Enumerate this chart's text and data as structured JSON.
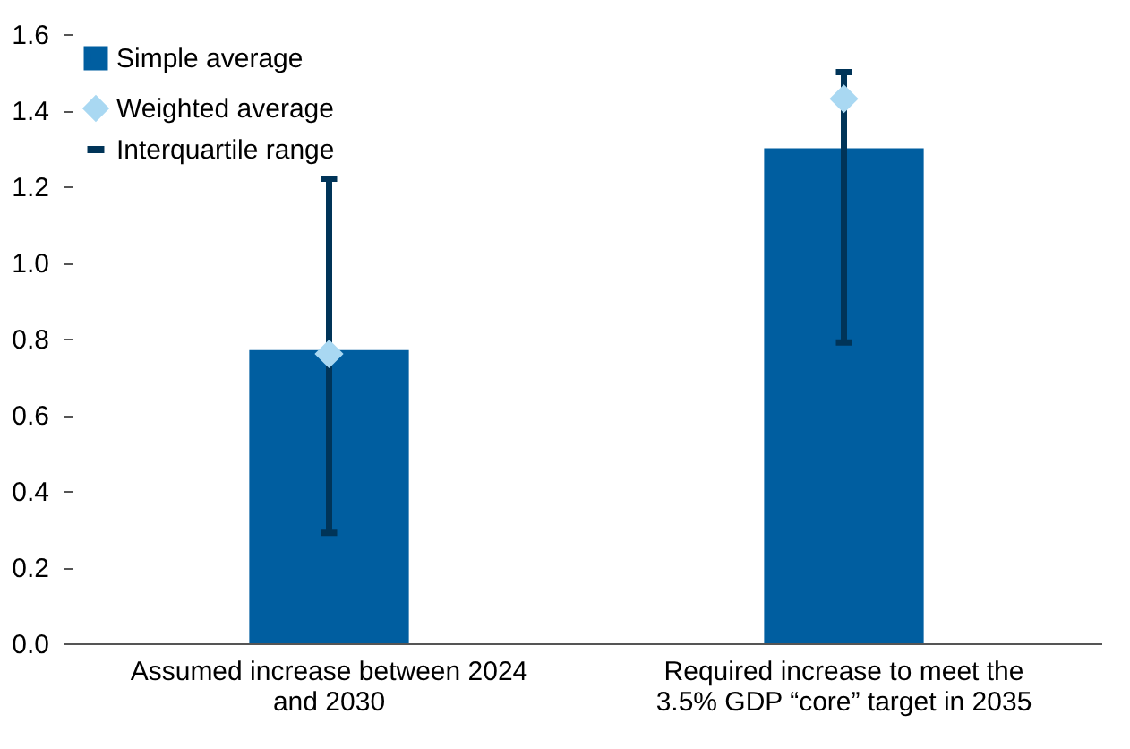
{
  "chart_data": {
    "type": "bar",
    "categories": [
      "Assumed increase between 2024 and 2030",
      "Required increase to meet the 3.5% GDP “core” target in 2035"
    ],
    "series": [
      {
        "name": "Simple average",
        "type": "bar",
        "color": "#005ea0",
        "values": [
          0.77,
          1.3
        ],
        "errors": [
          [
            0.29,
            1.22
          ],
          [
            0.79,
            1.5
          ]
        ]
      },
      {
        "name": "Weighted average",
        "type": "scatter",
        "marker": "diamond",
        "color": "#a9d8f2",
        "values": [
          0.76,
          1.43
        ]
      }
    ],
    "annotations": [
      "Interquartile range"
    ],
    "ylim": [
      0,
      1.6
    ],
    "yticks": [
      {
        "value": 0,
        "label": "0.0"
      },
      {
        "value": 0.2,
        "label": "0.2"
      },
      {
        "value": 0.4,
        "label": "0.4"
      },
      {
        "value": 0.6,
        "label": "0.6"
      },
      {
        "value": 0.8,
        "label": "0.8"
      },
      {
        "value": 1,
        "label": "1.0"
      },
      {
        "value": 1.2,
        "label": "1.2"
      },
      {
        "value": 1.4,
        "label": "1.4"
      },
      {
        "value": 1.6,
        "label": "1.6"
      }
    ],
    "legend": "top left"
  }
}
